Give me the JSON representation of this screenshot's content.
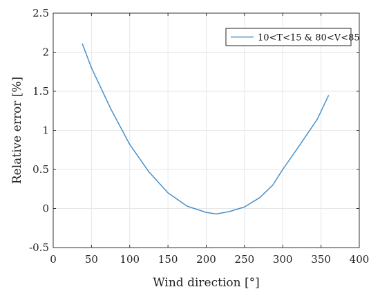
{
  "chart_data": {
    "type": "line",
    "xlabel": "Wind direction [°]",
    "ylabel": "Relative error [%]",
    "xlim": [
      0,
      400
    ],
    "ylim": [
      -0.5,
      2.5
    ],
    "xticks": [
      0,
      50,
      100,
      150,
      200,
      250,
      300,
      350,
      400
    ],
    "yticks": [
      -0.5,
      0,
      0.5,
      1,
      1.5,
      2,
      2.5
    ],
    "xtick_labels": [
      "0",
      "50",
      "100",
      "150",
      "200",
      "250",
      "300",
      "350",
      "400"
    ],
    "ytick_labels": [
      "-0.5",
      "0",
      "0.5",
      "1",
      "1.5",
      "2",
      "2.5"
    ],
    "grid": true,
    "legend_position": "top-right",
    "series": [
      {
        "name": "10<T<15 & 80<V<85",
        "color": "#4a90c8",
        "x": [
          38,
          50,
          75,
          100,
          125,
          150,
          175,
          200,
          213,
          230,
          250,
          270,
          287,
          300,
          320,
          345,
          360
        ],
        "y": [
          2.11,
          1.8,
          1.28,
          0.82,
          0.47,
          0.2,
          0.03,
          -0.05,
          -0.07,
          -0.04,
          0.02,
          0.14,
          0.3,
          0.5,
          0.78,
          1.14,
          1.45
        ]
      }
    ]
  }
}
